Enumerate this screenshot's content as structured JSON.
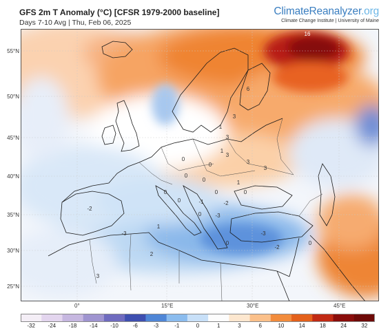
{
  "header": {
    "title": "GFS 2m T Anomaly (°C) [CFSR 1979-2000 baseline]",
    "subtitle": "Days 7-10 Avg | Thu, Feb 06, 2025",
    "brand_main": "ClimateReanalyzer",
    "brand_tld": ".org",
    "brand_sub": "Climate Change Institute | University of Maine"
  },
  "axes": {
    "latitudes": [
      "55°N",
      "50°N",
      "45°N",
      "40°N",
      "35°N",
      "30°N",
      "25°N"
    ],
    "longitudes": [
      "0°",
      "15°E",
      "30°E",
      "45°E"
    ]
  },
  "map_annotations": [
    "16",
    "6",
    "3",
    "3",
    "1",
    "3",
    "3",
    "3",
    "1",
    "0",
    "0",
    "0",
    "0",
    "0",
    "0",
    "-1",
    "0",
    "1",
    "0",
    "-2",
    "-3",
    "0",
    "-3",
    "0",
    "-2",
    "1",
    "-3",
    "-2",
    "2",
    "3",
    "0"
  ],
  "colorbar": {
    "labels": [
      "-32",
      "-24",
      "-18",
      "-14",
      "-10",
      "-6",
      "-3",
      "-1",
      "0",
      "1",
      "3",
      "6",
      "10",
      "14",
      "18",
      "24",
      "32"
    ],
    "colors": [
      "#f4eef6",
      "#e3d5ee",
      "#c6b7e0",
      "#9f94d0",
      "#6f6bbf",
      "#3e4fb0",
      "#4f86d6",
      "#8bbcee",
      "#c8e0f8",
      "#fdfdfd",
      "#fde7cf",
      "#fbc08a",
      "#f28c3c",
      "#e4611b",
      "#c12a14",
      "#8a0d0b",
      "#6e0a08"
    ]
  },
  "colors": {
    "warm_max": "#8e0e0c",
    "warm": "#ef8030",
    "cool": "#5d98de",
    "ocean_neutral": "#f4f6fb"
  }
}
